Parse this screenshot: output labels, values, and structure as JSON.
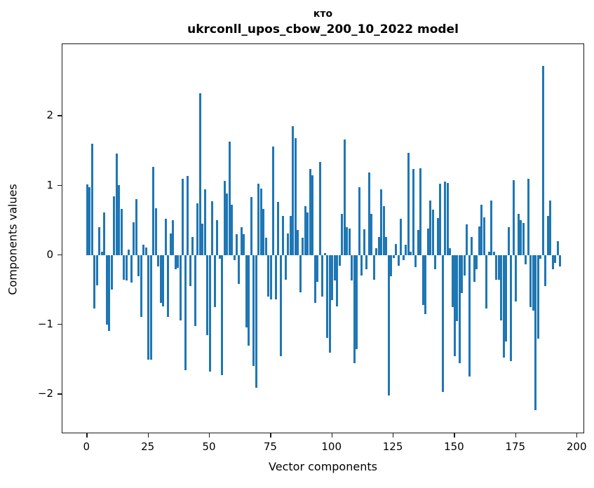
{
  "title": {
    "line1": "кто",
    "line2": "ukrconll_upos_cbow_200_10_2022 model"
  },
  "axes": {
    "xlabel": "Vector components",
    "ylabel": "Components values"
  },
  "chart_data": {
    "type": "bar",
    "title": "кто",
    "subtitle": "ukrconll_upos_cbow_200_10_2022 model",
    "xlabel": "Vector components",
    "ylabel": "Components values",
    "bar_color": "#1f77b4",
    "grid": false,
    "legend": false,
    "x_ticks": [
      0,
      25,
      50,
      75,
      100,
      125,
      150,
      175,
      200
    ],
    "y_ticks": [
      -2,
      -1,
      0,
      1,
      2
    ],
    "xlim": [
      -10.1,
      203.1
    ],
    "ylim": [
      -2.57,
      3.03
    ],
    "x_start_index": 0,
    "values": [
      1.02,
      0.98,
      1.6,
      -0.77,
      -0.44,
      0.4,
      0.05,
      0.61,
      -1.0,
      -1.09,
      -0.5,
      0.84,
      1.46,
      1.01,
      0.66,
      -0.35,
      -0.37,
      0.08,
      -0.4,
      0.47,
      0.8,
      -0.3,
      -0.89,
      0.15,
      0.11,
      -1.5,
      -1.5,
      1.27,
      0.67,
      -0.16,
      -0.69,
      -0.74,
      0.52,
      -0.89,
      0.31,
      0.5,
      -0.2,
      -0.18,
      -0.94,
      1.1,
      -1.65,
      1.14,
      -0.45,
      0.26,
      -1.02,
      0.74,
      2.33,
      0.45,
      0.95,
      -1.15,
      -1.67,
      0.77,
      -0.75,
      0.5,
      -0.05,
      -1.72,
      1.07,
      0.89,
      1.63,
      0.72,
      -0.07,
      0.3,
      -0.42,
      0.4,
      0.3,
      -1.04,
      -1.3,
      0.83,
      -1.59,
      -1.91,
      1.03,
      0.96,
      0.66,
      0.25,
      -0.6,
      -0.64,
      1.56,
      -0.64,
      0.76,
      -1.45,
      0.56,
      -0.35,
      0.31,
      0.56,
      1.85,
      1.68,
      0.36,
      -0.54,
      0.25,
      0.7,
      0.61,
      1.24,
      1.15,
      -0.69,
      -0.39,
      1.34,
      -0.6,
      0.03,
      -1.19,
      -1.4,
      -0.65,
      -0.37,
      -0.74,
      -0.15,
      0.59,
      1.66,
      0.4,
      0.38,
      -0.37,
      -1.55,
      -1.35,
      0.98,
      -0.29,
      0.37,
      -0.2,
      1.19,
      0.59,
      -0.35,
      0.1,
      0.26,
      0.95,
      0.7,
      0.26,
      -2.02,
      -0.3,
      -0.04,
      0.16,
      -0.15,
      0.52,
      -0.07,
      0.15,
      1.47,
      0.05,
      1.24,
      -0.17,
      0.36,
      1.25,
      -0.72,
      -0.85,
      0.38,
      0.78,
      0.65,
      -0.2,
      0.53,
      1.03,
      -1.97,
      1.06,
      1.04,
      0.1,
      -0.75,
      -1.45,
      -0.95,
      -1.55,
      -0.55,
      -0.29,
      0.44,
      -1.74,
      0.26,
      -0.39,
      -0.2,
      0.41,
      0.72,
      0.54,
      -0.77,
      0.05,
      0.78,
      0.05,
      -0.35,
      -0.35,
      -0.94,
      -1.47,
      -1.24,
      0.4,
      -1.52,
      1.08,
      -0.67,
      0.59,
      0.5,
      0.46,
      -0.13,
      1.1,
      -0.75,
      -0.8,
      -2.23,
      -1.2,
      -0.05,
      2.72,
      -0.45,
      0.56,
      0.78,
      -0.2,
      -0.11,
      0.2,
      -0.16
    ]
  }
}
